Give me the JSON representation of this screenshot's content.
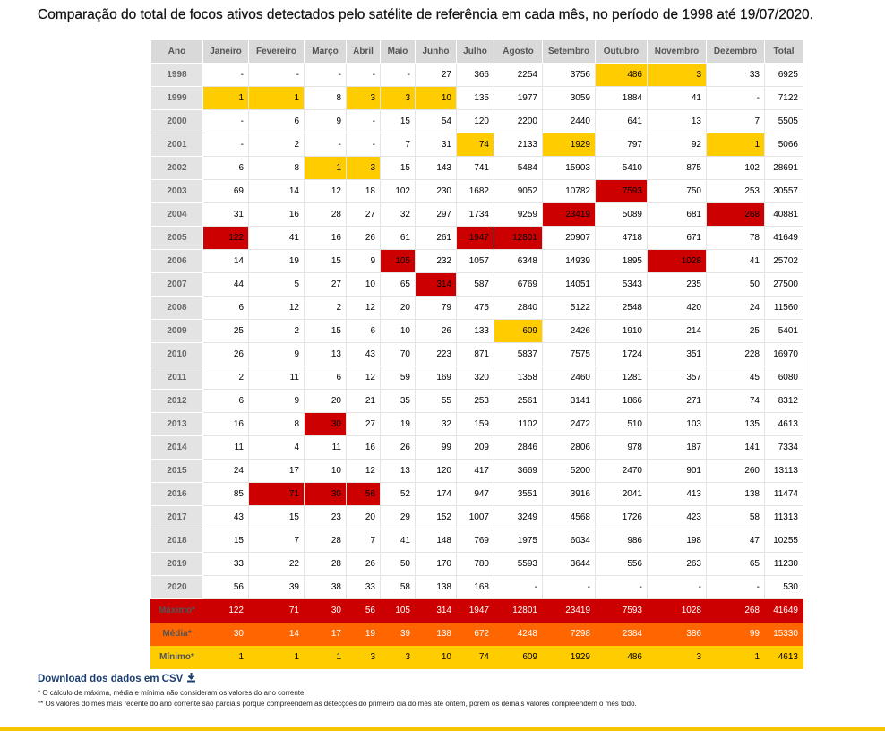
{
  "header": {
    "title": "Comparação do total de focos ativos detectados pelo satélite de referência em cada mês, no período de 1998 até 19/07/2020."
  },
  "table": {
    "columns": [
      "Ano",
      "Janeiro",
      "Fevereiro",
      "Março",
      "Abril",
      "Maio",
      "Junho",
      "Julho",
      "Agosto",
      "Setembro",
      "Outubro",
      "Novembro",
      "Dezembro",
      "Total"
    ],
    "rows": [
      [
        "1998",
        "-",
        "-",
        "-",
        "-",
        "-",
        27,
        366,
        2254,
        3756,
        486,
        3,
        33,
        6925
      ],
      [
        "1999",
        1,
        1,
        8,
        3,
        3,
        10,
        135,
        1977,
        3059,
        1884,
        41,
        "-",
        7122
      ],
      [
        "2000",
        "-",
        6,
        9,
        "-",
        15,
        54,
        120,
        2200,
        2440,
        641,
        13,
        7,
        5505
      ],
      [
        "2001",
        "-",
        2,
        "-",
        "-",
        7,
        31,
        74,
        2133,
        1929,
        797,
        92,
        1,
        5066
      ],
      [
        "2002",
        6,
        8,
        1,
        3,
        15,
        143,
        741,
        5484,
        15903,
        5410,
        875,
        102,
        28691
      ],
      [
        "2003",
        69,
        14,
        12,
        18,
        102,
        230,
        1682,
        9052,
        10782,
        7593,
        750,
        253,
        30557
      ],
      [
        "2004",
        31,
        16,
        28,
        27,
        32,
        297,
        1734,
        9259,
        23419,
        5089,
        681,
        268,
        40881
      ],
      [
        "2005",
        122,
        41,
        16,
        26,
        61,
        261,
        1947,
        12801,
        20907,
        4718,
        671,
        78,
        41649
      ],
      [
        "2006",
        14,
        19,
        15,
        9,
        105,
        232,
        1057,
        6348,
        14939,
        1895,
        1028,
        41,
        25702
      ],
      [
        "2007",
        44,
        5,
        27,
        10,
        65,
        314,
        587,
        6769,
        14051,
        5343,
        235,
        50,
        27500
      ],
      [
        "2008",
        6,
        12,
        2,
        12,
        20,
        79,
        475,
        2840,
        5122,
        2548,
        420,
        24,
        11560
      ],
      [
        "2009",
        25,
        2,
        15,
        6,
        10,
        26,
        133,
        609,
        2426,
        1910,
        214,
        25,
        5401
      ],
      [
        "2010",
        26,
        9,
        13,
        43,
        70,
        223,
        871,
        5837,
        7575,
        1724,
        351,
        228,
        16970
      ],
      [
        "2011",
        2,
        11,
        6,
        12,
        59,
        169,
        320,
        1358,
        2460,
        1281,
        357,
        45,
        6080
      ],
      [
        "2012",
        6,
        9,
        20,
        21,
        35,
        55,
        253,
        2561,
        3141,
        1866,
        271,
        74,
        8312
      ],
      [
        "2013",
        16,
        8,
        30,
        27,
        19,
        32,
        159,
        1102,
        2472,
        510,
        103,
        135,
        4613
      ],
      [
        "2014",
        11,
        4,
        11,
        16,
        26,
        99,
        209,
        2846,
        2806,
        978,
        187,
        141,
        7334
      ],
      [
        "2015",
        24,
        17,
        10,
        12,
        13,
        120,
        417,
        3669,
        5200,
        2470,
        901,
        260,
        13113
      ],
      [
        "2016",
        85,
        71,
        30,
        56,
        52,
        174,
        947,
        3551,
        3916,
        2041,
        413,
        138,
        11474
      ],
      [
        "2017",
        43,
        15,
        23,
        20,
        29,
        152,
        1007,
        3249,
        4568,
        1726,
        423,
        58,
        11313
      ],
      [
        "2018",
        15,
        7,
        28,
        7,
        41,
        148,
        769,
        1975,
        6034,
        986,
        198,
        47,
        10255
      ],
      [
        "2019",
        33,
        22,
        28,
        26,
        50,
        170,
        780,
        5593,
        3644,
        556,
        263,
        65,
        11230
      ],
      [
        "2020",
        56,
        39,
        38,
        33,
        58,
        138,
        168,
        "-",
        "-",
        "-",
        "-",
        "-",
        530
      ]
    ],
    "summary": [
      [
        "Máximo*",
        122,
        71,
        30,
        56,
        105,
        314,
        1947,
        12801,
        23419,
        7593,
        1028,
        268,
        41649
      ],
      [
        "Média*",
        30,
        14,
        17,
        19,
        39,
        138,
        672,
        4248,
        7298,
        2384,
        386,
        99,
        15330
      ],
      [
        "Mínimo*",
        1,
        1,
        1,
        3,
        3,
        10,
        74,
        609,
        1929,
        486,
        3,
        1,
        4613
      ]
    ]
  },
  "footer": {
    "download": "Download dos dados em CSV",
    "notes": [
      "* O cálculo de máxima, média e mínima não consideram os valores do ano corrente.",
      "** Os valores do mês mais recente do ano corrente são parciais porque compreendem as detecções do primeiro dia do mês até ontem, porém os demais valores compreendem o mês todo."
    ]
  }
}
